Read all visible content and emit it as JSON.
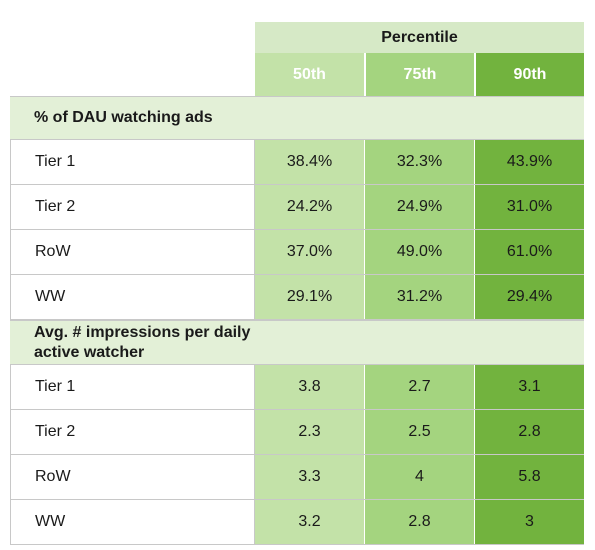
{
  "header": {
    "group_label": "Percentile",
    "columns": [
      "50th",
      "75th",
      "90th"
    ]
  },
  "colors": {
    "light_green": "#c3e2a8",
    "mid_green": "#a4d47f",
    "dark_green": "#72b33e",
    "section_bg": "#e3f0d7",
    "percentile_bg": "#d6e9c6"
  },
  "sections": [
    {
      "title": "% of DAU watching ads",
      "rows": [
        {
          "label": "Tier 1",
          "values": [
            "38.4%",
            "32.3%",
            "43.9%"
          ]
        },
        {
          "label": "Tier 2",
          "values": [
            "24.2%",
            "24.9%",
            "31.0%"
          ]
        },
        {
          "label": "RoW",
          "values": [
            "37.0%",
            "49.0%",
            "61.0%"
          ]
        },
        {
          "label": "WW",
          "values": [
            "29.1%",
            "31.2%",
            "29.4%"
          ]
        }
      ]
    },
    {
      "title_line1": "Avg. # impressions per daily",
      "title_line2": "active watcher",
      "rows": [
        {
          "label": "Tier 1",
          "values": [
            "3.8",
            "2.7",
            "3.1"
          ]
        },
        {
          "label": "Tier 2",
          "values": [
            "2.3",
            "2.5",
            "2.8"
          ]
        },
        {
          "label": "RoW",
          "values": [
            "3.3",
            "4",
            "5.8"
          ]
        },
        {
          "label": "WW",
          "values": [
            "3.2",
            "2.8",
            "3"
          ]
        }
      ]
    }
  ]
}
